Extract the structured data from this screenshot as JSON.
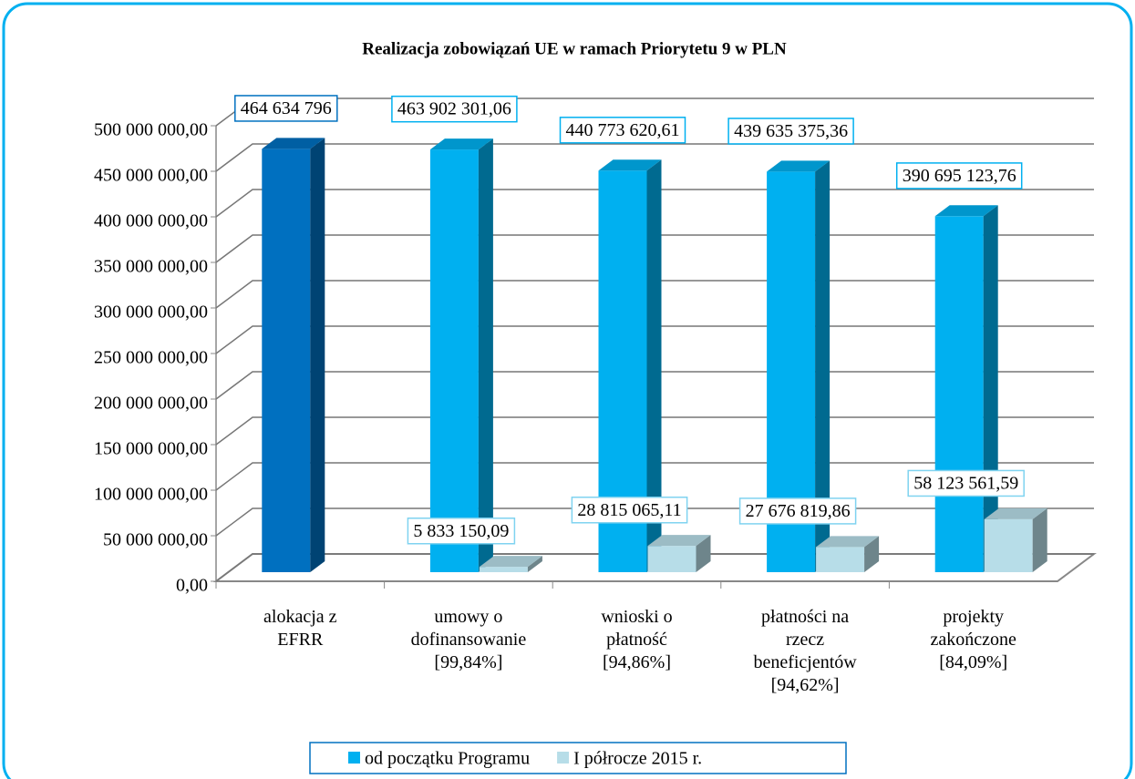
{
  "chart_data": {
    "type": "bar3d",
    "title": "Realizacja zobowiązań UE w ramach Priorytetu 9 w PLN",
    "categories": [
      "alokacja z\nEFRR",
      "umowy o\ndofinansowanie\n[99,84%]",
      "wnioski o\npłatność\n[94,86%]",
      "płatności na\nrzecz\nbeneficjentów\n[94,62%]",
      "projekty\nzakończone\n[84,09%]"
    ],
    "series": [
      {
        "name": "od początku Programu",
        "color": "#00b0f0",
        "point_colors": [
          "#0070c0",
          "#00b0f0",
          "#00b0f0",
          "#00b0f0",
          "#00b0f0"
        ],
        "values": [
          464634796,
          463902301.06,
          440773620.61,
          439635375.36,
          390695123.76
        ],
        "value_labels": [
          "464 634 796",
          "463 902 301,06",
          "440 773 620,61",
          "439 635 375,36",
          "390 695 123,76"
        ]
      },
      {
        "name": "I półrocze 2015 r.",
        "color": "#b7dde8",
        "values": [
          null,
          5833150.09,
          28815065.11,
          27676819.86,
          58123561.59
        ],
        "value_labels": [
          null,
          "5 833 150,09",
          "28 815 065,11",
          "27 676 819,86",
          "58 123 561,59"
        ]
      }
    ],
    "ylim": [
      0,
      500000000
    ],
    "yticks": [
      {
        "value": 0,
        "label": "0,00"
      },
      {
        "value": 50000000,
        "label": "50 000 000,00"
      },
      {
        "value": 100000000,
        "label": "100 000 000,00"
      },
      {
        "value": 150000000,
        "label": "150 000 000,00"
      },
      {
        "value": 200000000,
        "label": "200 000 000,00"
      },
      {
        "value": 250000000,
        "label": "250 000 000,00"
      },
      {
        "value": 300000000,
        "label": "300 000 000,00"
      },
      {
        "value": 350000000,
        "label": "350 000 000,00"
      },
      {
        "value": 400000000,
        "label": "400 000 000,00"
      },
      {
        "value": 450000000,
        "label": "450 000 000,00"
      },
      {
        "value": 500000000,
        "label": "500 000 000,00"
      }
    ],
    "grid": true,
    "legend": "bottom"
  }
}
